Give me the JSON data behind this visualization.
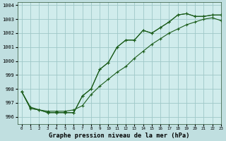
{
  "title": "Graphe pression niveau de la mer (hPa)",
  "background_color": "#c0dfe0",
  "plot_bg_color": "#d0ecec",
  "grid_color": "#9ec8c8",
  "line_color": "#1a5c1a",
  "xlim": [
    -0.5,
    23
  ],
  "ylim": [
    995.5,
    1004.2
  ],
  "yticks": [
    996,
    997,
    998,
    999,
    1000,
    1001,
    1002,
    1003,
    1004
  ],
  "xticks": [
    0,
    1,
    2,
    3,
    4,
    5,
    6,
    7,
    8,
    9,
    10,
    11,
    12,
    13,
    14,
    15,
    16,
    17,
    18,
    19,
    20,
    21,
    22,
    23
  ],
  "series1": [
    997.8,
    996.6,
    996.5,
    996.3,
    996.3,
    996.3,
    996.3,
    997.5,
    998.0,
    999.4,
    999.9,
    1001.0,
    1001.5,
    1001.5,
    1002.2,
    1002.0,
    1002.4,
    1002.8,
    1003.3,
    1003.4,
    1003.2,
    1003.2,
    1003.3,
    1003.3
  ],
  "series2": [
    997.8,
    996.6,
    996.5,
    996.3,
    996.3,
    996.3,
    996.3,
    997.5,
    998.0,
    999.4,
    999.9,
    1001.0,
    1001.5,
    1001.5,
    1002.2,
    1002.0,
    1002.4,
    1002.8,
    1003.3,
    1003.4,
    1003.2,
    1003.2,
    1003.3,
    1003.3
  ],
  "series3": [
    997.8,
    996.7,
    996.5,
    996.4,
    996.4,
    996.4,
    996.5,
    996.8,
    997.6,
    998.2,
    998.7,
    999.2,
    999.6,
    1000.2,
    1000.7,
    1001.2,
    1001.6,
    1002.0,
    1002.3,
    1002.6,
    1002.8,
    1003.0,
    1003.1,
    1002.9
  ]
}
